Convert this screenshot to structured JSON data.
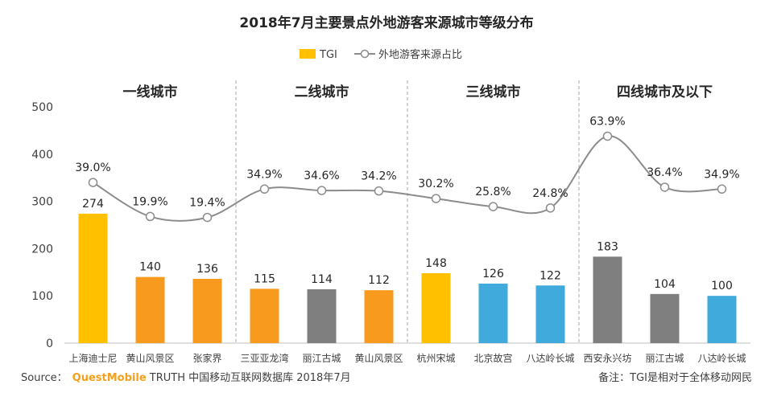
{
  "chart_data": {
    "type": "bar",
    "title": "2018年7月主要景点外地游客来源城市等级分布",
    "legend": [
      {
        "name": "TGI",
        "kind": "bar"
      },
      {
        "name": "外地游客来源占比",
        "kind": "line"
      }
    ],
    "ylim": [
      0,
      500
    ],
    "yticks": [
      "0",
      "100",
      "200",
      "300",
      "400",
      "500"
    ],
    "groups": [
      {
        "label": "一线城市",
        "start": 0,
        "end": 2
      },
      {
        "label": "二线城市",
        "start": 3,
        "end": 5
      },
      {
        "label": "三线城市",
        "start": 6,
        "end": 8
      },
      {
        "label": "四线城市及以下",
        "start": 9,
        "end": 11
      }
    ],
    "categories": [
      "上海迪士尼",
      "黄山风景区",
      "张家界",
      "三亚亚龙湾",
      "丽江古城",
      "黄山风景区",
      "杭州宋城",
      "北京故宫",
      "八达岭长城",
      "西安永兴坊",
      "丽江古城",
      "八达岭长城"
    ],
    "series": [
      {
        "name": "TGI",
        "values": [
          274,
          140,
          136,
          115,
          114,
          112,
          148,
          126,
          122,
          183,
          104,
          100
        ],
        "colors": [
          "#FFC000",
          "#F79A1E",
          "#F79A1E",
          "#F79A1E",
          "#7F7F7F",
          "#F79A1E",
          "#FFC000",
          "#41AADC",
          "#41AADC",
          "#7F7F7F",
          "#7F7F7F",
          "#41AADC"
        ]
      },
      {
        "name": "外地游客来源占比",
        "values": [
          39.0,
          19.9,
          19.4,
          34.9,
          34.6,
          34.2,
          30.2,
          25.8,
          24.8,
          63.9,
          36.4,
          34.9
        ],
        "labels": [
          "39.0%",
          "19.9%",
          "19.4%",
          "34.9%",
          "34.6%",
          "34.2%",
          "30.2%",
          "25.8%",
          "24.8%",
          "63.9%",
          "36.4%",
          "34.9%"
        ],
        "plot_values": [
          340,
          268,
          266,
          326,
          323,
          322,
          306,
          289,
          286,
          438,
          330,
          326
        ],
        "color": "#8C8C8C"
      }
    ],
    "legend_colors": {
      "bar": "#FFC000",
      "line": "#8C8C8C"
    }
  },
  "footer": {
    "source_prefix": "Source：",
    "source_brand": "QuestMobile",
    "source_rest": " TRUTH 中国移动互联网数据库 2018年7月",
    "note": "备注：TGI是相对于全体移动网民"
  },
  "colors": {
    "brand": "#F5A01A",
    "divider": "#A6A6A6",
    "axis": "#BFBFBF"
  }
}
